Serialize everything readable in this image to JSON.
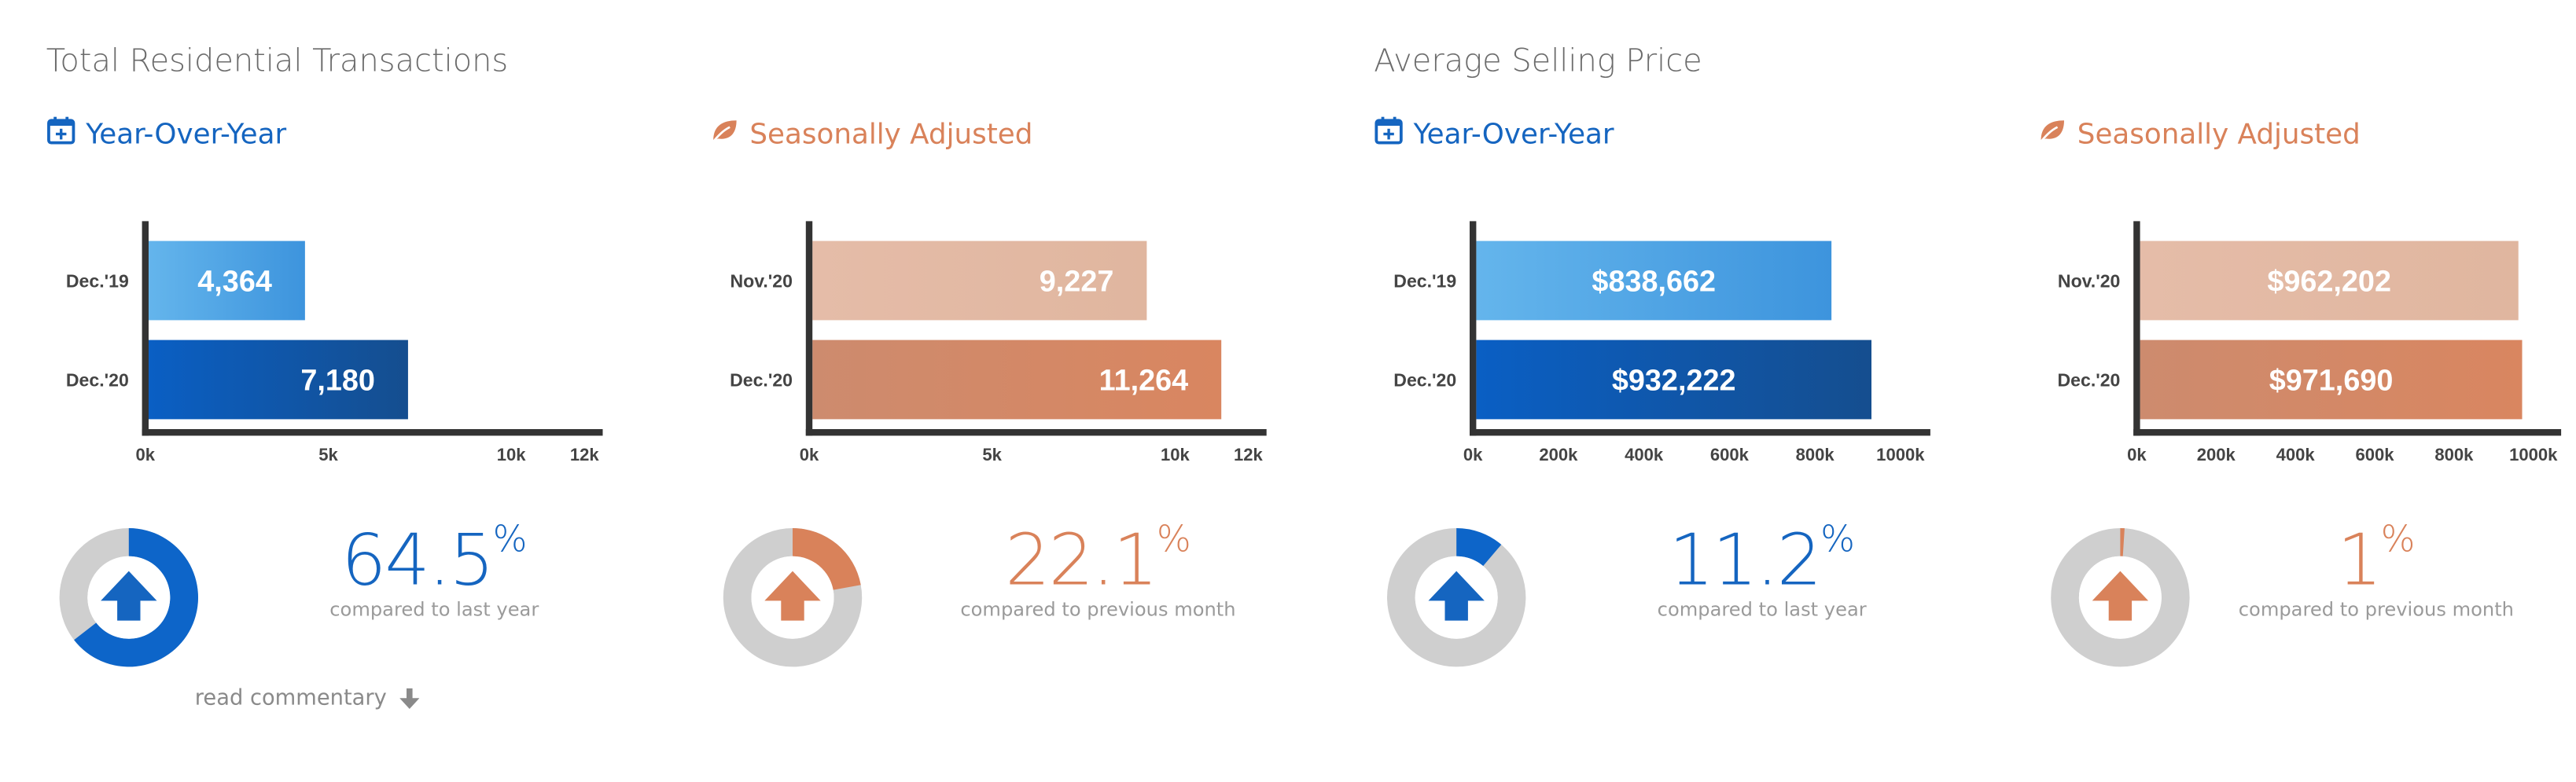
{
  "sections": [
    {
      "title": "Total Residential Transactions"
    },
    {
      "title": "Average Selling Price"
    }
  ],
  "colors": {
    "blue": "#1565c0",
    "blue_light": "#4fa3e0",
    "orange": "#d9825a",
    "orange_light": "#e2b8a2",
    "donut_gray": "#cfcfcf",
    "axis": "#333333"
  },
  "read_commentary": "read commentary",
  "panels": [
    {
      "subtitle": "Year-Over-Year",
      "icon": "calendar-plus-icon",
      "theme": "blue",
      "percent": "64.5",
      "percent_symbol": "%",
      "caption": "compared to last year",
      "percent_value": 64.5
    },
    {
      "subtitle": "Seasonally Adjusted",
      "icon": "leaf-icon",
      "theme": "orange",
      "percent": "22.1",
      "percent_symbol": "%",
      "caption": "compared to previous month",
      "percent_value": 22.1
    },
    {
      "subtitle": "Year-Over-Year",
      "icon": "calendar-plus-icon",
      "theme": "blue",
      "percent": "11.2",
      "percent_symbol": "%",
      "caption": "compared to last year",
      "percent_value": 11.2
    },
    {
      "subtitle": "Seasonally Adjusted",
      "icon": "leaf-icon",
      "theme": "orange",
      "percent": "1",
      "percent_symbol": "%",
      "caption": "compared to previous month",
      "percent_value": 1
    }
  ],
  "chart_data": [
    {
      "type": "bar",
      "orientation": "horizontal",
      "title": "Total Residential Transactions - Year-Over-Year",
      "categories": [
        "Dec.'19",
        "Dec.'20"
      ],
      "values": [
        4364,
        7180
      ],
      "labels": [
        "4,364",
        "7,180"
      ],
      "xlim": [
        0,
        12500
      ],
      "ticks": [
        0,
        5000,
        10000,
        12000
      ],
      "tick_labels": [
        "0k",
        "5k",
        "10k",
        "12k"
      ]
    },
    {
      "type": "bar",
      "orientation": "horizontal",
      "title": "Total Residential Transactions - Seasonally Adjusted",
      "categories": [
        "Nov.'20",
        "Dec.'20"
      ],
      "values": [
        9227,
        11264
      ],
      "labels": [
        "9,227",
        "11,264"
      ],
      "xlim": [
        0,
        12500
      ],
      "ticks": [
        0,
        5000,
        10000,
        12000
      ],
      "tick_labels": [
        "0k",
        "5k",
        "10k",
        "12k"
      ]
    },
    {
      "type": "bar",
      "orientation": "horizontal",
      "title": "Average Selling Price - Year-Over-Year",
      "categories": [
        "Dec.'19",
        "Dec.'20"
      ],
      "values": [
        838662,
        932222
      ],
      "labels": [
        "$838,662",
        "$932,222"
      ],
      "xlim": [
        0,
        1070000
      ],
      "ticks": [
        0,
        200000,
        400000,
        600000,
        800000,
        1000000
      ],
      "tick_labels": [
        "0k",
        "200k",
        "400k",
        "600k",
        "800k",
        "1000k"
      ]
    },
    {
      "type": "bar",
      "orientation": "horizontal",
      "title": "Average Selling Price - Seasonally Adjusted",
      "categories": [
        "Nov.'20",
        "Dec.'20"
      ],
      "values": [
        962202,
        971690
      ],
      "labels": [
        "$962,202",
        "$971,690"
      ],
      "xlim": [
        0,
        1070000
      ],
      "ticks": [
        0,
        200000,
        400000,
        600000,
        800000,
        1000000
      ],
      "tick_labels": [
        "0k",
        "200k",
        "400k",
        "600k",
        "800k",
        "1000k"
      ]
    }
  ]
}
